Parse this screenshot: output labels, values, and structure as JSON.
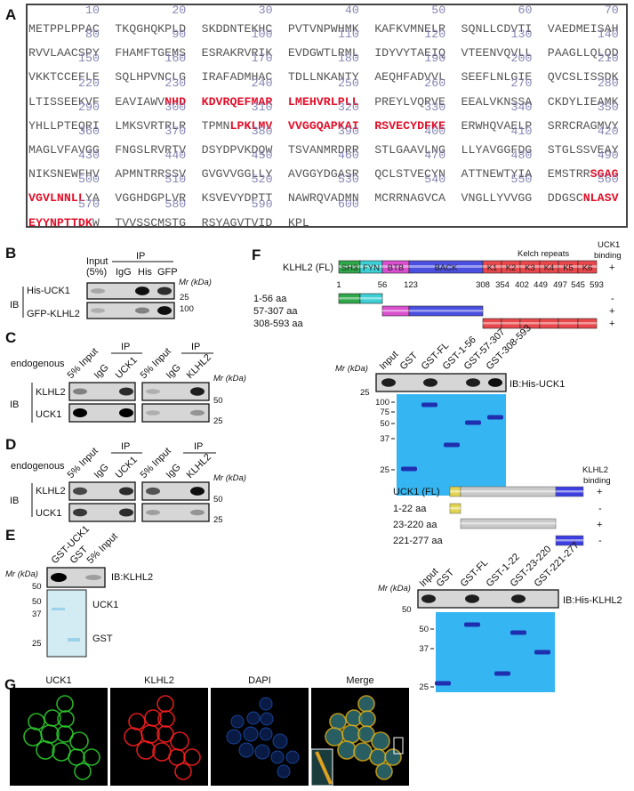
{
  "panel_labels": {
    "A": "A",
    "B": "B",
    "C": "C",
    "D": "D",
    "E": "E",
    "F": "F",
    "G": "G"
  },
  "panel_a": {
    "sequence": "METPPLPPACTKQGHQKPLDSKDDNTEKHCPVTVNPWHMKKAFKVMNELRSQNLLCDVTIVAEDMEISAHRVVLAACSPYFHAMFTGEMSESRAKRVRIKEVDGWTLRMLIDYVYTAEIQVTEENVQVLLPAAGLLQLQDVKKTCCEFLESQLHPVNCLGIRAFADMHACTDLLNKANTYAEQHFADVVLSEEFLNLGIEQVCSLISSDKLTISSEEKVFEAVIAWVNHDKDVRQEFMARLMEHVRLPLLPREYLVQRVEEEALVKNSSACKDYLIEAMKYHLLPTEQRILMKSVRTRLRTPMNLPKLMVVVGGQAPKAIRSVECYDFKEERWHQVAELPSRRCRAGMVYMAGLVFAVGGFNGSLRVRTVDSYDPVKDQWTSVANMRDRRSTLGAAVLNGLLYAVGGFDGSTGLSSVEAYNIKSNEWFHVAPMNTRRSSVGVGVVGGLLYAVGGYDGASRQCLSTVECYNATTNEWTYIAEMSTRRSGAGVGVLNNLLYAVGGHDGPLVRKSVEVYDPTTNAWRQVADMNMCRRNAGVCAVNGLLYVVGGDDGSCNLASVEYYNPTTDKWTVVSSCMSTGRSYAGVTVIDKPL",
    "highlighted_ranges": [
      [
        228,
        250
      ],
      [
        305,
        330
      ],
      [
        487,
        498
      ],
      [
        556,
        569
      ]
    ],
    "highlight_color": "#e0102a",
    "number_color": "#8585b5"
  },
  "panel_b": {
    "input": "Input",
    "input_pct": "(5%)",
    "ip": "IP",
    "lanes": [
      "IgG",
      "His",
      "GFP"
    ],
    "mr": "Mr (kDa)",
    "ib": "IB",
    "rows": [
      "His-UCK1",
      "GFP-KLHL2"
    ],
    "markers": [
      "25",
      "100"
    ],
    "bands": [
      [
        0.3,
        0,
        0.95,
        0.85
      ],
      [
        0.25,
        0,
        0.5,
        0.95
      ]
    ]
  },
  "panel_c": {
    "condition": "endogenous",
    "ip": "IP",
    "ib": "IB",
    "mr": "Mr (kDa)",
    "left_lanes": [
      "5% Input",
      "IgG",
      "UCK1"
    ],
    "right_lanes": [
      "5% Input",
      "IgG",
      "KLHL2"
    ],
    "rows": [
      "KLHL2",
      "UCK1"
    ],
    "markers": [
      "50",
      "25"
    ],
    "left_bands": [
      [
        0.5,
        0,
        0.85
      ],
      [
        1.0,
        0,
        1.0
      ]
    ],
    "right_bands": [
      [
        0.25,
        0,
        0.9
      ],
      [
        0.25,
        0,
        0.4
      ]
    ]
  },
  "panel_d": {
    "condition": "endogenous",
    "ip": "IP",
    "ib": "IB",
    "mr": "Mr (kDa)",
    "left_lanes": [
      "5% Input",
      "IgG",
      "UCK1"
    ],
    "right_lanes": [
      "5% Input",
      "IgG",
      "KLHL2"
    ],
    "rows": [
      "KLHL2",
      "UCK1"
    ],
    "markers": [
      "50",
      "25"
    ],
    "left_bands": [
      [
        0.75,
        0,
        0.85
      ],
      [
        0.8,
        0,
        0.85
      ]
    ],
    "right_bands": [
      [
        0.7,
        0,
        0.95
      ],
      [
        0.35,
        0,
        0.4
      ]
    ]
  },
  "panel_e": {
    "lanes": [
      "GST-UCK1",
      "GST",
      "5% Input"
    ],
    "mr": "Mr (kDa)",
    "blot_label": "IB:KLHL2",
    "blot_marker": "50",
    "gel_markers": [
      "50",
      "37",
      "25"
    ],
    "gel_labels": [
      "UCK1",
      "GST"
    ],
    "blot_bands": [
      1.0,
      0,
      0.35
    ]
  },
  "panel_f": {
    "klhl2": {
      "name": "KLHL2 (FL)",
      "kelch_label": "Kelch repeats",
      "binding_header": [
        "UCK1",
        "binding"
      ],
      "domains": [
        {
          "label": "SH3",
          "color": "#2ea84a"
        },
        {
          "label": "FYN",
          "color": "#3ccfd6"
        },
        {
          "label": "BTB",
          "color": "#d94fd0"
        },
        {
          "label": "BACK",
          "color": "#4a4fe0"
        },
        {
          "label": "K1",
          "color": "#e8474c"
        },
        {
          "label": "K2",
          "color": "#e8474c"
        },
        {
          "label": "K3",
          "color": "#e8474c"
        },
        {
          "label": "K4",
          "color": "#e8474c"
        },
        {
          "label": "K5",
          "color": "#e8474c"
        },
        {
          "label": "K6",
          "color": "#e8474c"
        }
      ],
      "positions": [
        "1",
        "56",
        "123",
        "308",
        "354",
        "402",
        "449",
        "497",
        "545",
        "593"
      ],
      "fragments": [
        {
          "label": "1-56 aa",
          "binding": "-"
        },
        {
          "label": "57-307 aa",
          "binding": "+"
        },
        {
          "label": "308-593 aa",
          "binding": "+"
        }
      ],
      "fl_binding": "+",
      "pulldown": {
        "lanes": [
          "Input",
          "GST",
          "GST-FL",
          "GST-1-56",
          "GST-57-307",
          "GST-308-593"
        ],
        "mr": "Mr (kDa)",
        "blot_label": "IB:His-UCK1",
        "blot_marker": "25",
        "gel_markers": [
          "100",
          "75",
          "50",
          "37",
          "25"
        ],
        "blot_bands": [
          0.9,
          0,
          0.9,
          0,
          0.9,
          0.95
        ]
      }
    },
    "uck1": {
      "name": "UCK1 (FL)",
      "binding_header": [
        "KLHL2",
        "binding"
      ],
      "fl_binding": "+",
      "domain_colors": [
        "#e2d450",
        "#c8c8c8",
        "#3c3ee0"
      ],
      "fragments": [
        {
          "label": "1-22 aa",
          "binding": "-"
        },
        {
          "label": "23-220 aa",
          "binding": "+"
        },
        {
          "label": "221-277 aa",
          "binding": "-"
        }
      ],
      "pulldown": {
        "lanes": [
          "Input",
          "GST",
          "GST-FL",
          "GST-1-22",
          "GST-23-220",
          "GST-221-277"
        ],
        "mr": "Mr (kDa)",
        "blot_label": "IB:His-KLHL2",
        "blot_marker": "50",
        "gel_markers": [
          "50",
          "37",
          "25"
        ],
        "blot_bands": [
          0.9,
          0,
          0.9,
          0,
          0.9,
          0
        ]
      }
    }
  },
  "panel_g": {
    "channels": [
      {
        "label": "UCK1",
        "color": "#2fd02f"
      },
      {
        "label": "KLHL2",
        "color": "#ff2020"
      },
      {
        "label": "DAPI",
        "color": "#1e4fb0"
      },
      {
        "label": "Merge",
        "color": "#d8b020"
      }
    ]
  }
}
